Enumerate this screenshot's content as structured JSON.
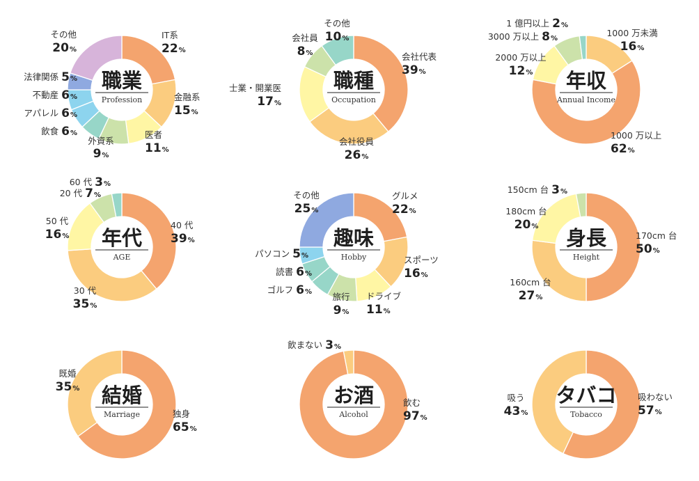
{
  "colors": {
    "orange": "#F4A46E",
    "lightorange": "#FBCC7F",
    "yellow": "#FFF6A4",
    "green": "#CCE2AA",
    "teal": "#97D6C8",
    "sky": "#8DD4EE",
    "blue": "#8FA9E0",
    "lavender": "#D7B4DA"
  },
  "percent_sign": "%",
  "chart_data": [
    {
      "type": "pie",
      "title": "職業",
      "subtitle": "Profession",
      "slices": [
        {
          "label": "IT系",
          "value": 22,
          "color": "orange"
        },
        {
          "label": "金融系",
          "value": 15,
          "color": "lightorange"
        },
        {
          "label": "医者",
          "value": 11,
          "color": "yellow"
        },
        {
          "label": "外資系",
          "value": 9,
          "color": "green"
        },
        {
          "label": "飲食",
          "value": 6,
          "color": "teal"
        },
        {
          "label": "アパレル",
          "value": 6,
          "color": "sky"
        },
        {
          "label": "不動産",
          "value": 6,
          "color": "sky"
        },
        {
          "label": "法律関係",
          "value": 5,
          "color": "blue"
        },
        {
          "label": "その他",
          "value": 20,
          "color": "lavender"
        }
      ]
    },
    {
      "type": "pie",
      "title": "職種",
      "subtitle": "Occupation",
      "slices": [
        {
          "label": "会社代表",
          "value": 39,
          "color": "orange"
        },
        {
          "label": "会社役員",
          "value": 26,
          "color": "lightorange"
        },
        {
          "label": "士業・開業医",
          "value": 17,
          "color": "yellow"
        },
        {
          "label": "会社員",
          "value": 8,
          "color": "green"
        },
        {
          "label": "その他",
          "value": 10,
          "color": "teal"
        }
      ]
    },
    {
      "type": "pie",
      "title": "年収",
      "subtitle": "Annual Income",
      "slices": [
        {
          "label": "1000 万未満",
          "value": 16,
          "color": "lightorange"
        },
        {
          "label": "1000 万以上",
          "value": 62,
          "color": "orange"
        },
        {
          "label": "2000 万以上",
          "value": 12,
          "color": "yellow"
        },
        {
          "label": "3000 万以上",
          "value": 8,
          "color": "green"
        },
        {
          "label": "1 億円以上",
          "value": 2,
          "color": "teal"
        }
      ]
    },
    {
      "type": "pie",
      "title": "年代",
      "subtitle": "AGE",
      "slices": [
        {
          "label": "40 代",
          "value": 39,
          "color": "orange"
        },
        {
          "label": "30 代",
          "value": 35,
          "color": "lightorange"
        },
        {
          "label": "50 代",
          "value": 16,
          "color": "yellow"
        },
        {
          "label": "20 代",
          "value": 7,
          "color": "green"
        },
        {
          "label": "60 代",
          "value": 3,
          "color": "teal"
        }
      ]
    },
    {
      "type": "pie",
      "title": "趣味",
      "subtitle": "Hobby",
      "slices": [
        {
          "label": "グルメ",
          "value": 22,
          "color": "orange"
        },
        {
          "label": "スポーツ",
          "value": 16,
          "color": "lightorange"
        },
        {
          "label": "ドライブ",
          "value": 11,
          "color": "yellow"
        },
        {
          "label": "旅行",
          "value": 9,
          "color": "green"
        },
        {
          "label": "ゴルフ",
          "value": 6,
          "color": "teal"
        },
        {
          "label": "読書",
          "value": 6,
          "color": "teal"
        },
        {
          "label": "パソコン",
          "value": 5,
          "color": "sky"
        },
        {
          "label": "その他",
          "value": 25,
          "color": "blue"
        }
      ]
    },
    {
      "type": "pie",
      "title": "身長",
      "subtitle": "Height",
      "slices": [
        {
          "label": "170cm 台",
          "value": 50,
          "color": "orange"
        },
        {
          "label": "160cm 台",
          "value": 27,
          "color": "lightorange"
        },
        {
          "label": "180cm 台",
          "value": 20,
          "color": "yellow"
        },
        {
          "label": "150cm 台",
          "value": 3,
          "color": "green"
        }
      ]
    },
    {
      "type": "pie",
      "title": "結婚",
      "subtitle": "Marriage",
      "slices": [
        {
          "label": "独身",
          "value": 65,
          "color": "orange"
        },
        {
          "label": "既婚",
          "value": 35,
          "color": "lightorange"
        }
      ]
    },
    {
      "type": "pie",
      "title": "お酒",
      "subtitle": "Alcohol",
      "slices": [
        {
          "label": "飲む",
          "value": 97,
          "color": "orange"
        },
        {
          "label": "飲まない",
          "value": 3,
          "color": "lightorange"
        }
      ]
    },
    {
      "type": "pie",
      "title": "タバコ",
      "subtitle": "Tobacco",
      "slices": [
        {
          "label": "吸わない",
          "value": 57,
          "color": "orange"
        },
        {
          "label": "吸う",
          "value": 43,
          "color": "lightorange"
        }
      ]
    }
  ]
}
